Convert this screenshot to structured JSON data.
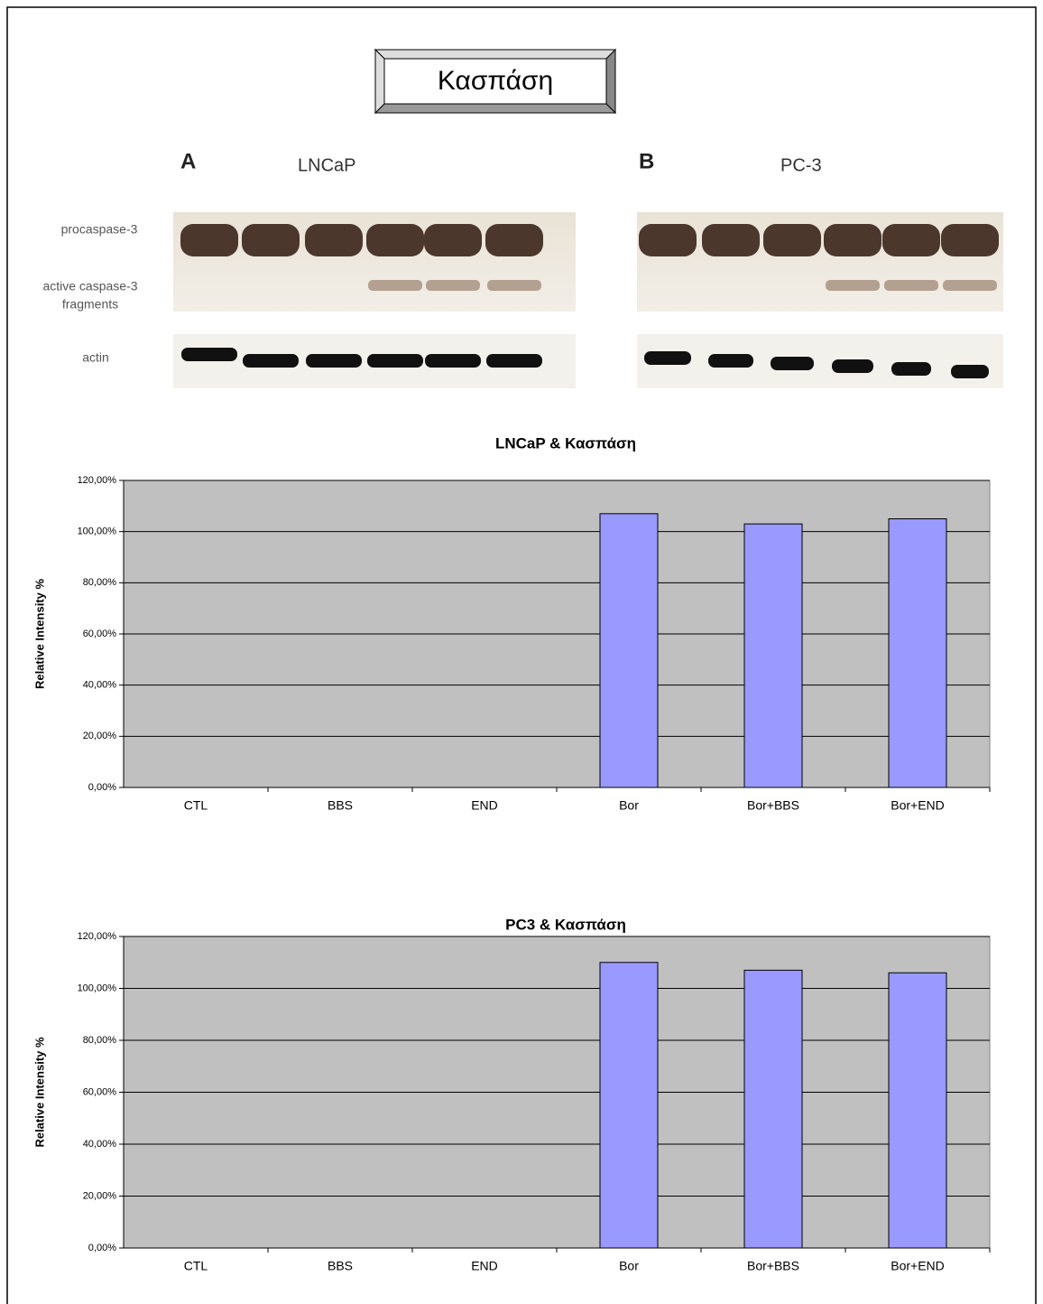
{
  "title": "Κασπάση",
  "blot": {
    "panels": [
      {
        "letter": "A",
        "label": "LNCaP"
      },
      {
        "letter": "B",
        "label": "PC-3"
      }
    ],
    "row_labels": [
      "procaspase-3",
      "active caspase-3",
      "fragments",
      "actin"
    ]
  },
  "chart_data": [
    {
      "type": "bar",
      "title": "LNCaP & Κασπάση",
      "y_label": "Relative Intensity %",
      "categories": [
        "CTL",
        "BBS",
        "END",
        "Bor",
        "Bor+BBS",
        "Bor+END"
      ],
      "values": [
        0,
        0,
        0,
        107,
        103,
        105
      ],
      "color": "#9999ff",
      "grid": true,
      "ylim": [
        0,
        120
      ],
      "yticks": [
        {
          "value": 0,
          "label": "0,00%"
        },
        {
          "value": 20,
          "label": "20,00%"
        },
        {
          "value": 40,
          "label": "40,00%"
        },
        {
          "value": 60,
          "label": "60,00%"
        },
        {
          "value": 80,
          "label": "80,00%"
        },
        {
          "value": 100,
          "label": "100,00%"
        },
        {
          "value": 120,
          "label": "120,00%"
        }
      ]
    },
    {
      "type": "bar",
      "title": "PC3 & Κασπάση",
      "y_label": "Relative Intensity %",
      "categories": [
        "CTL",
        "BBS",
        "END",
        "Bor",
        "Bor+BBS",
        "Bor+END"
      ],
      "values": [
        0,
        0,
        0,
        110,
        107,
        106
      ],
      "color": "#9999ff",
      "grid": true,
      "ylim": [
        0,
        120
      ],
      "yticks": [
        {
          "value": 0,
          "label": "0,00%"
        },
        {
          "value": 20,
          "label": "20,00%"
        },
        {
          "value": 40,
          "label": "40,00%"
        },
        {
          "value": 60,
          "label": "60,00%"
        },
        {
          "value": 80,
          "label": "80,00%"
        },
        {
          "value": 100,
          "label": "100,00%"
        },
        {
          "value": 120,
          "label": "120,00%"
        }
      ]
    }
  ]
}
